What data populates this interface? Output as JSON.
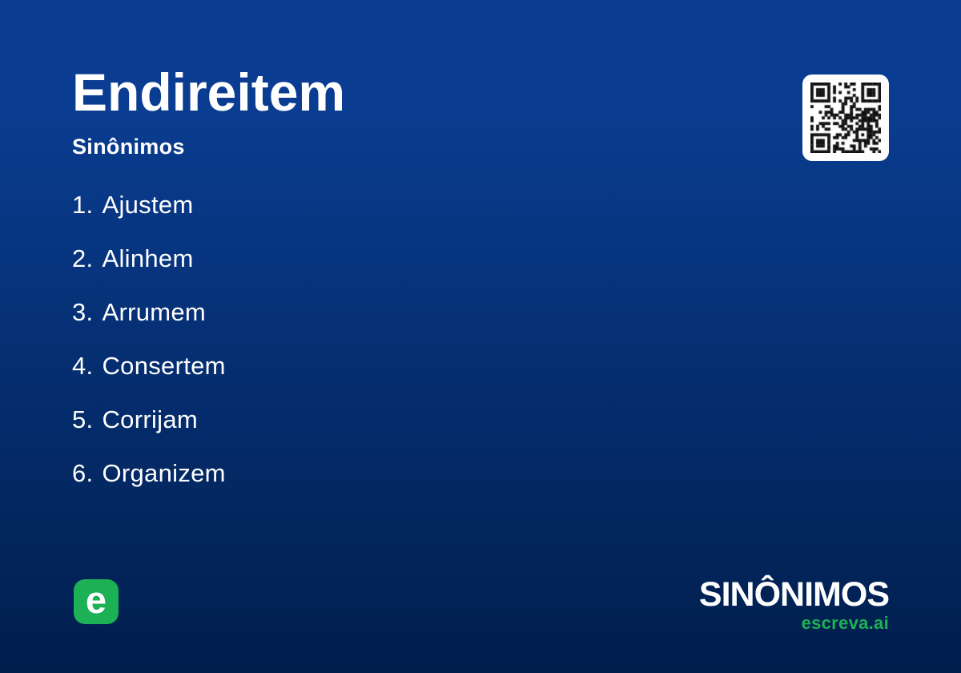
{
  "card": {
    "word": "Endireitem",
    "subtitle": "Sinônimos",
    "synonyms": [
      {
        "number": "1.",
        "word": "Ajustem"
      },
      {
        "number": "2.",
        "word": "Alinhem"
      },
      {
        "number": "3.",
        "word": "Arrumem"
      },
      {
        "number": "4.",
        "word": "Consertem"
      },
      {
        "number": "5.",
        "word": "Corrijam"
      },
      {
        "number": "6.",
        "word": "Organizem"
      }
    ]
  },
  "icons": {
    "qr_code": "qr-code",
    "logo": "escreva-e-logo"
  },
  "footer": {
    "logo_letter": "e",
    "brand": "SINÔNIMOS",
    "domain": "escreva.ai"
  },
  "colors": {
    "background_top": "#0a3d92",
    "background_bottom": "#001e4c",
    "accent_green": "#1db155",
    "text": "#ffffff",
    "qr_background": "#ffffff",
    "qr_foreground": "#111111"
  }
}
